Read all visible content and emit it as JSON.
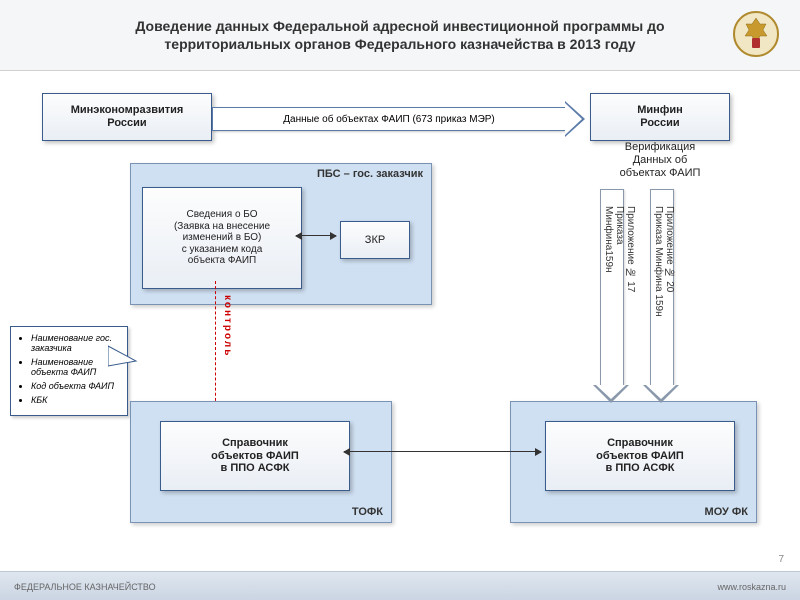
{
  "title": "Доведение данных Федеральной адресной инвестиционной программы до территориальных органов Федерального казначейства в 2013 году",
  "top": {
    "left_box": "Минэкономразвития\nРоссии",
    "arrow_label": "Данные об объектах ФАИП (673 приказ МЭР)",
    "right_box": "Минфин\nРоссии"
  },
  "verification": "Верификация\nДанных об\nобъектах ФАИП",
  "pbs": {
    "label": "ПБС – гос. заказчик",
    "bo_box": "Сведения о БО\n(Заявка на внесение\nизменений в БО)\nс указанием кода\nобъекта ФАИП",
    "zkr": "ЗКР"
  },
  "control_label": "контроль",
  "callout": {
    "items": [
      "Наименование гос. заказчика",
      "Наименование объекта ФАИП",
      "Код объекта ФАИП",
      "КБК"
    ]
  },
  "tofk": {
    "label": "ТОФК",
    "box": "Справочник\nобъектов ФАИП\nв ППО АСФК"
  },
  "mou": {
    "label": "МОУ ФК",
    "box": "Справочник\nобъектов ФАИП\nв ППО АСФК"
  },
  "down_arrows": {
    "left": "Приложение № 17\nПриказа\nМинфина159н",
    "right": "Приложение № 20\nПриказа Минфина 159н"
  },
  "footer": {
    "left": "ФЕДЕРАЛЬНОЕ КАЗНАЧЕЙСТВО",
    "right": "www.roskazna.ru"
  },
  "page": "7",
  "colors": {
    "panel_bg": "#cfe0f2",
    "box_border": "#3a5c8c",
    "accent_red": "#c00"
  }
}
